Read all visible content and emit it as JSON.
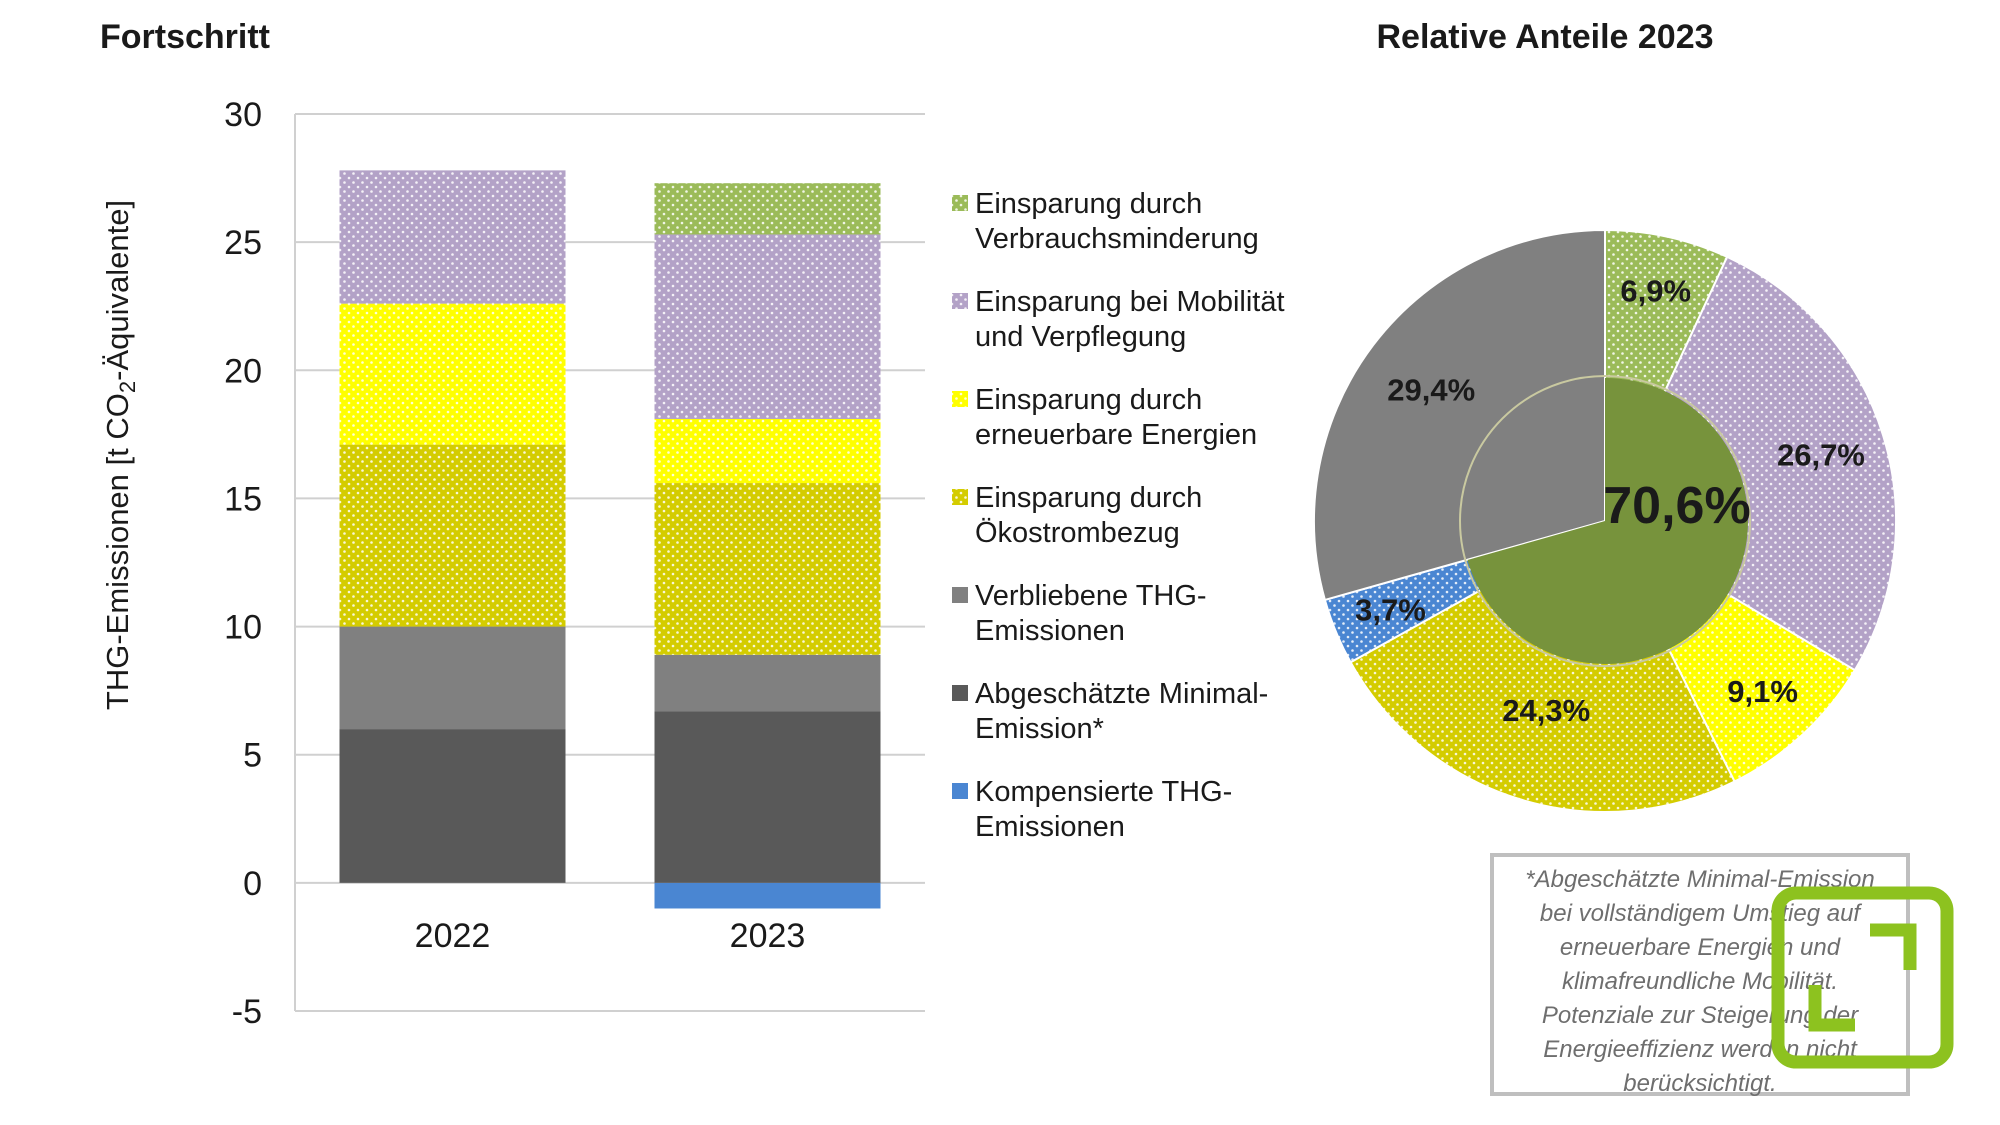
{
  "left_title": "Fortschritt",
  "right_title": "Relative Anteile 2023",
  "colors": {
    "verbrauch": "#9bbb59",
    "mobilitaet": "#b3a2c7",
    "erneuerbar": "#ffff00",
    "oekostrom": "#d4cc00",
    "verblieben": "#808080",
    "minimal": "#595959",
    "kompensiert": "#4a86d2",
    "pie_center": "#77933c"
  },
  "chart_data": [
    {
      "type": "bar",
      "stacked": true,
      "ylabel": "THG-Emissionen [t CO₂-Äquivalente]",
      "ylim": [
        -5,
        30
      ],
      "yticks": [
        30,
        25,
        20,
        15,
        10,
        5,
        0,
        -5
      ],
      "categories": [
        "2022",
        "2023"
      ],
      "series": [
        {
          "key": "kompensiert",
          "name": "Kompensierte THG-Emissionen",
          "values": [
            0,
            -1.0
          ]
        },
        {
          "key": "minimal",
          "name": "Abgeschätzte Minimal-Emission*",
          "values": [
            6.0,
            6.7
          ]
        },
        {
          "key": "verblieben",
          "name": "Verbliebene THG-Emissionen",
          "values": [
            4.0,
            2.2
          ]
        },
        {
          "key": "oekostrom",
          "name": "Einsparung durch Ökostrombezug",
          "values": [
            7.1,
            6.7
          ]
        },
        {
          "key": "erneuerbar",
          "name": "Einsparung durch erneuerbare Energien",
          "values": [
            5.5,
            2.5
          ]
        },
        {
          "key": "mobilitaet",
          "name": "Einsparung bei Mobilität und Verpflegung",
          "values": [
            5.2,
            7.2
          ]
        },
        {
          "key": "verbrauch",
          "name": "Einsparung durch Verbrauchsminderung",
          "values": [
            0,
            2.0
          ]
        }
      ],
      "legend_position": "right",
      "grid": true
    },
    {
      "type": "pie",
      "slices": [
        {
          "key": "verbrauch",
          "label": "6,9%",
          "value": 6.9
        },
        {
          "key": "mobilitaet",
          "label": "26,7%",
          "value": 26.7
        },
        {
          "key": "erneuerbar",
          "label": "9,1%",
          "value": 9.1
        },
        {
          "key": "oekostrom",
          "label": "24,3%",
          "value": 24.3
        },
        {
          "key": "kompensiert",
          "label": "3,7%",
          "value": 3.7
        },
        {
          "key": "verblieben",
          "label": "29,4%",
          "value": 29.4
        }
      ],
      "center_value": 70.6,
      "center_label": "70,6%"
    }
  ],
  "legend": [
    {
      "key": "verbrauch",
      "lines": [
        "Einsparung durch",
        "Verbrauchsminderung"
      ]
    },
    {
      "key": "mobilitaet",
      "lines": [
        "Einsparung bei Mobilität",
        "und Verpflegung"
      ]
    },
    {
      "key": "erneuerbar",
      "lines": [
        "Einsparung durch",
        "erneuerbare Energien"
      ]
    },
    {
      "key": "oekostrom",
      "lines": [
        "Einsparung durch",
        "Ökostrombezug"
      ]
    },
    {
      "key": "verblieben",
      "lines": [
        "Verbliebene THG-",
        "Emissionen"
      ]
    },
    {
      "key": "minimal",
      "lines": [
        "Abgeschätzte Minimal-",
        "Emission*"
      ]
    },
    {
      "key": "kompensiert",
      "lines": [
        "Kompensierte THG-",
        "Emissionen"
      ]
    }
  ],
  "note": {
    "lines": [
      "*Abgeschätzte Minimal-Emission",
      "bei vollständigem Umstieg auf",
      "erneuerbare Energien und",
      "klimafreundliche Mobilität.",
      "Potenziale zur Steigerung der",
      "Energieeffizienz werden nicht",
      "berücksichtigt."
    ]
  }
}
